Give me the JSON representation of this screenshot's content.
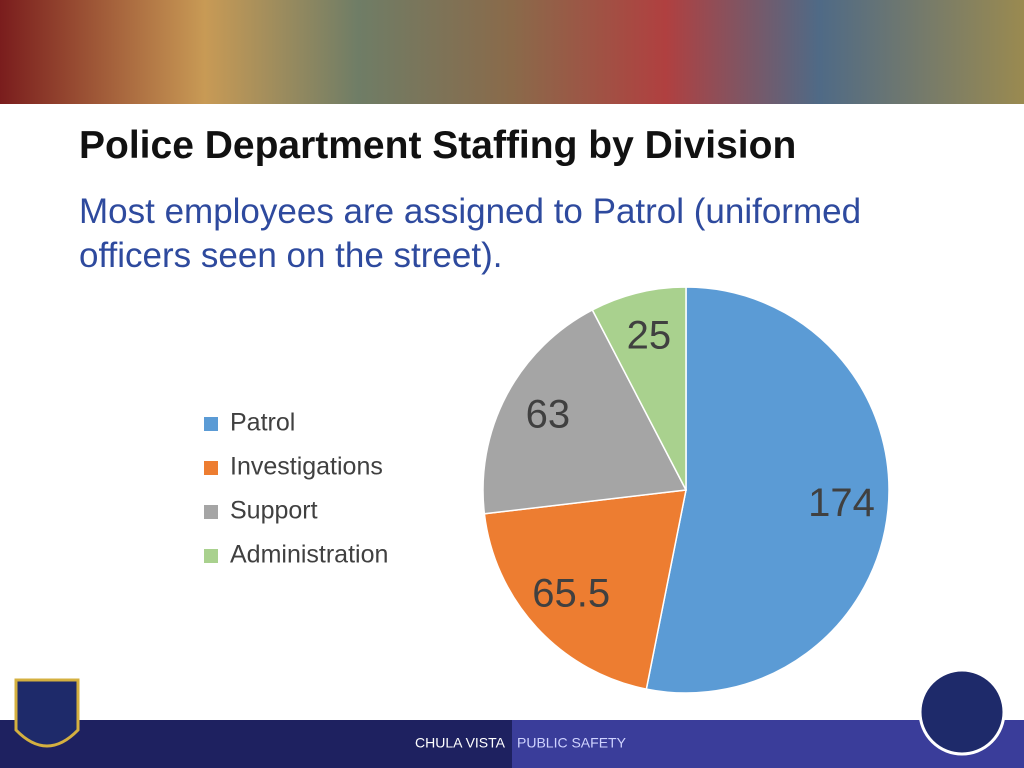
{
  "chart_data": {
    "type": "pie",
    "title": "Police Department Staffing by Division",
    "subtitle": "Most employees are assigned to Patrol (uniformed officers seen on the street).",
    "categories": [
      "Patrol",
      "Investigations",
      "Support",
      "Administration"
    ],
    "values": [
      174,
      65.5,
      63,
      25
    ],
    "colors": [
      "#5b9bd5",
      "#ed7d31",
      "#a5a5a5",
      "#a9d18e"
    ],
    "legend": "left"
  },
  "footer": {
    "left": "CHULA VISTA",
    "right": "PUBLIC SAFETY"
  }
}
